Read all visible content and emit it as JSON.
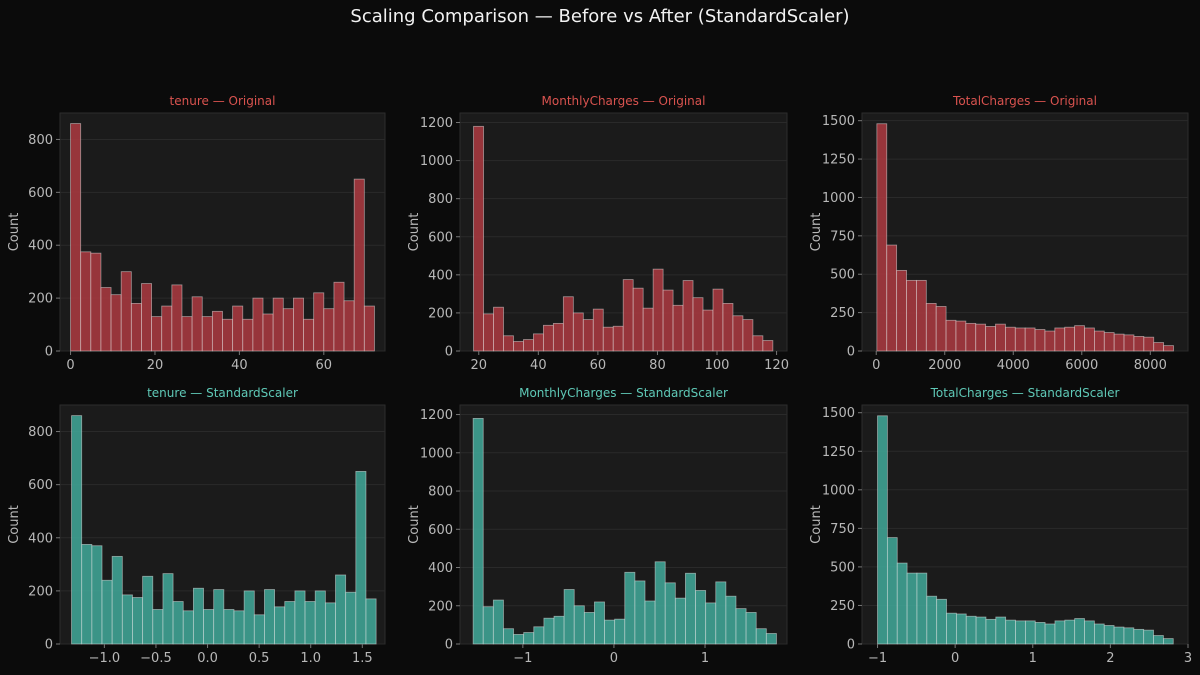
{
  "figure_title": "Scaling Comparison — Before vs After (StandardScaler)",
  "colors": {
    "original_bar": "#a5393f",
    "original_title": "#d9534f",
    "scaled_bar": "#3fa294",
    "scaled_title": "#5fc9b7",
    "panel_bg": "#1b1b1b",
    "page_bg": "#0b0b0b",
    "tick_text": "#b8b8b8"
  },
  "chart_data": [
    {
      "type": "bar",
      "title": "tenure — Original",
      "xlabel": "",
      "ylabel": "Count",
      "xlim": [
        -2.5,
        74.5
      ],
      "ylim": [
        0,
        900
      ],
      "xticks": [
        0,
        20,
        40,
        60
      ],
      "xtick_labels": [
        "0",
        "20",
        "40",
        "60"
      ],
      "yticks": [
        0,
        200,
        400,
        600,
        800
      ],
      "ytick_labels": [
        "0",
        "200",
        "400",
        "600",
        "800"
      ],
      "bin_start": 0,
      "bin_width": 2.4,
      "values": [
        860,
        375,
        370,
        240,
        213,
        300,
        180,
        255,
        130,
        170,
        250,
        130,
        205,
        130,
        150,
        120,
        170,
        120,
        200,
        140,
        200,
        160,
        200,
        120,
        220,
        160,
        260,
        190,
        650,
        170
      ]
    },
    {
      "type": "bar",
      "title": "MonthlyCharges — Original",
      "xlabel": "",
      "ylabel": "Count",
      "xlim": [
        13.7,
        123.5
      ],
      "ylim": [
        0,
        1250
      ],
      "xticks": [
        20,
        40,
        60,
        80,
        100,
        120
      ],
      "xtick_labels": [
        "20",
        "40",
        "60",
        "80",
        "100",
        "120"
      ],
      "yticks": [
        0,
        200,
        400,
        600,
        800,
        1000,
        1200
      ],
      "ytick_labels": [
        "0",
        "200",
        "400",
        "600",
        "800",
        "1000",
        "1200"
      ],
      "bin_start": 18.25,
      "bin_width": 3.35,
      "values": [
        1180,
        195,
        230,
        80,
        50,
        60,
        90,
        135,
        145,
        285,
        200,
        165,
        220,
        125,
        130,
        375,
        330,
        225,
        430,
        320,
        240,
        370,
        280,
        215,
        325,
        250,
        185,
        165,
        80,
        55
      ]
    },
    {
      "type": "bar",
      "title": "TotalCharges — Original",
      "xlabel": "",
      "ylabel": "Count",
      "xlim": [
        -415,
        9100
      ],
      "ylim": [
        0,
        1550
      ],
      "xticks": [
        0,
        2000,
        4000,
        6000,
        8000
      ],
      "xtick_labels": [
        "0",
        "2000",
        "4000",
        "6000",
        "8000"
      ],
      "yticks": [
        0,
        250,
        500,
        750,
        1000,
        1250,
        1500
      ],
      "ytick_labels": [
        "0",
        "250",
        "500",
        "750",
        "1000",
        "1250",
        "1500"
      ],
      "bin_start": 18.8,
      "bin_width": 288.6,
      "values": [
        1480,
        690,
        525,
        460,
        460,
        310,
        290,
        200,
        195,
        180,
        175,
        160,
        175,
        155,
        150,
        150,
        140,
        130,
        150,
        155,
        165,
        150,
        130,
        120,
        110,
        105,
        95,
        90,
        55,
        35
      ]
    },
    {
      "type": "bar",
      "title": "tenure — StandardScaler",
      "xlabel": "",
      "ylabel": "Count",
      "xlim": [
        -1.43,
        1.72
      ],
      "ylim": [
        0,
        900
      ],
      "xticks": [
        -1.0,
        -0.5,
        0.0,
        0.5,
        1.0,
        1.5
      ],
      "xtick_labels": [
        "−1.0",
        "−0.5",
        "0.0",
        "0.5",
        "1.0",
        "1.5"
      ],
      "yticks": [
        0,
        200,
        400,
        600,
        800
      ],
      "ytick_labels": [
        "0",
        "200",
        "400",
        "600",
        "800"
      ],
      "bin_start": -1.318,
      "bin_width": 0.0984,
      "values": [
        860,
        375,
        370,
        240,
        330,
        185,
        175,
        255,
        130,
        265,
        160,
        125,
        210,
        130,
        205,
        130,
        125,
        200,
        110,
        205,
        140,
        160,
        200,
        160,
        200,
        155,
        260,
        195,
        650,
        170
      ]
    },
    {
      "type": "bar",
      "title": "MonthlyCharges — StandardScaler",
      "xlabel": "",
      "ylabel": "Count",
      "xlim": [
        -1.69,
        1.9
      ],
      "ylim": [
        0,
        1250
      ],
      "xticks": [
        -1,
        0,
        1
      ],
      "xtick_labels": [
        "−1",
        "0",
        "1"
      ],
      "yticks": [
        0,
        200,
        400,
        600,
        800,
        1000,
        1200
      ],
      "ytick_labels": [
        "0",
        "200",
        "400",
        "600",
        "800",
        "1000",
        "1200"
      ],
      "bin_start": -1.546,
      "bin_width": 0.111,
      "values": [
        1180,
        195,
        230,
        80,
        50,
        60,
        90,
        135,
        145,
        285,
        200,
        165,
        220,
        125,
        130,
        375,
        330,
        225,
        430,
        320,
        240,
        370,
        280,
        215,
        325,
        250,
        185,
        165,
        80,
        55
      ]
    },
    {
      "type": "bar",
      "title": "TotalCharges — StandardScaler",
      "xlabel": "",
      "ylabel": "Count",
      "xlim": [
        -1.2,
        3.0
      ],
      "ylim": [
        0,
        1550
      ],
      "xticks": [
        -1,
        0,
        1,
        2,
        3
      ],
      "xtick_labels": [
        "−1",
        "0",
        "1",
        "2",
        "3"
      ],
      "yticks": [
        0,
        250,
        500,
        750,
        1000,
        1250,
        1500
      ],
      "ytick_labels": [
        "0",
        "250",
        "500",
        "750",
        "1000",
        "1250",
        "1500"
      ],
      "bin_start": -1.0,
      "bin_width": 0.127,
      "values": [
        1480,
        690,
        525,
        460,
        460,
        310,
        290,
        200,
        195,
        180,
        175,
        160,
        175,
        155,
        150,
        150,
        140,
        130,
        150,
        155,
        165,
        150,
        130,
        120,
        110,
        105,
        95,
        90,
        55,
        35
      ]
    }
  ]
}
